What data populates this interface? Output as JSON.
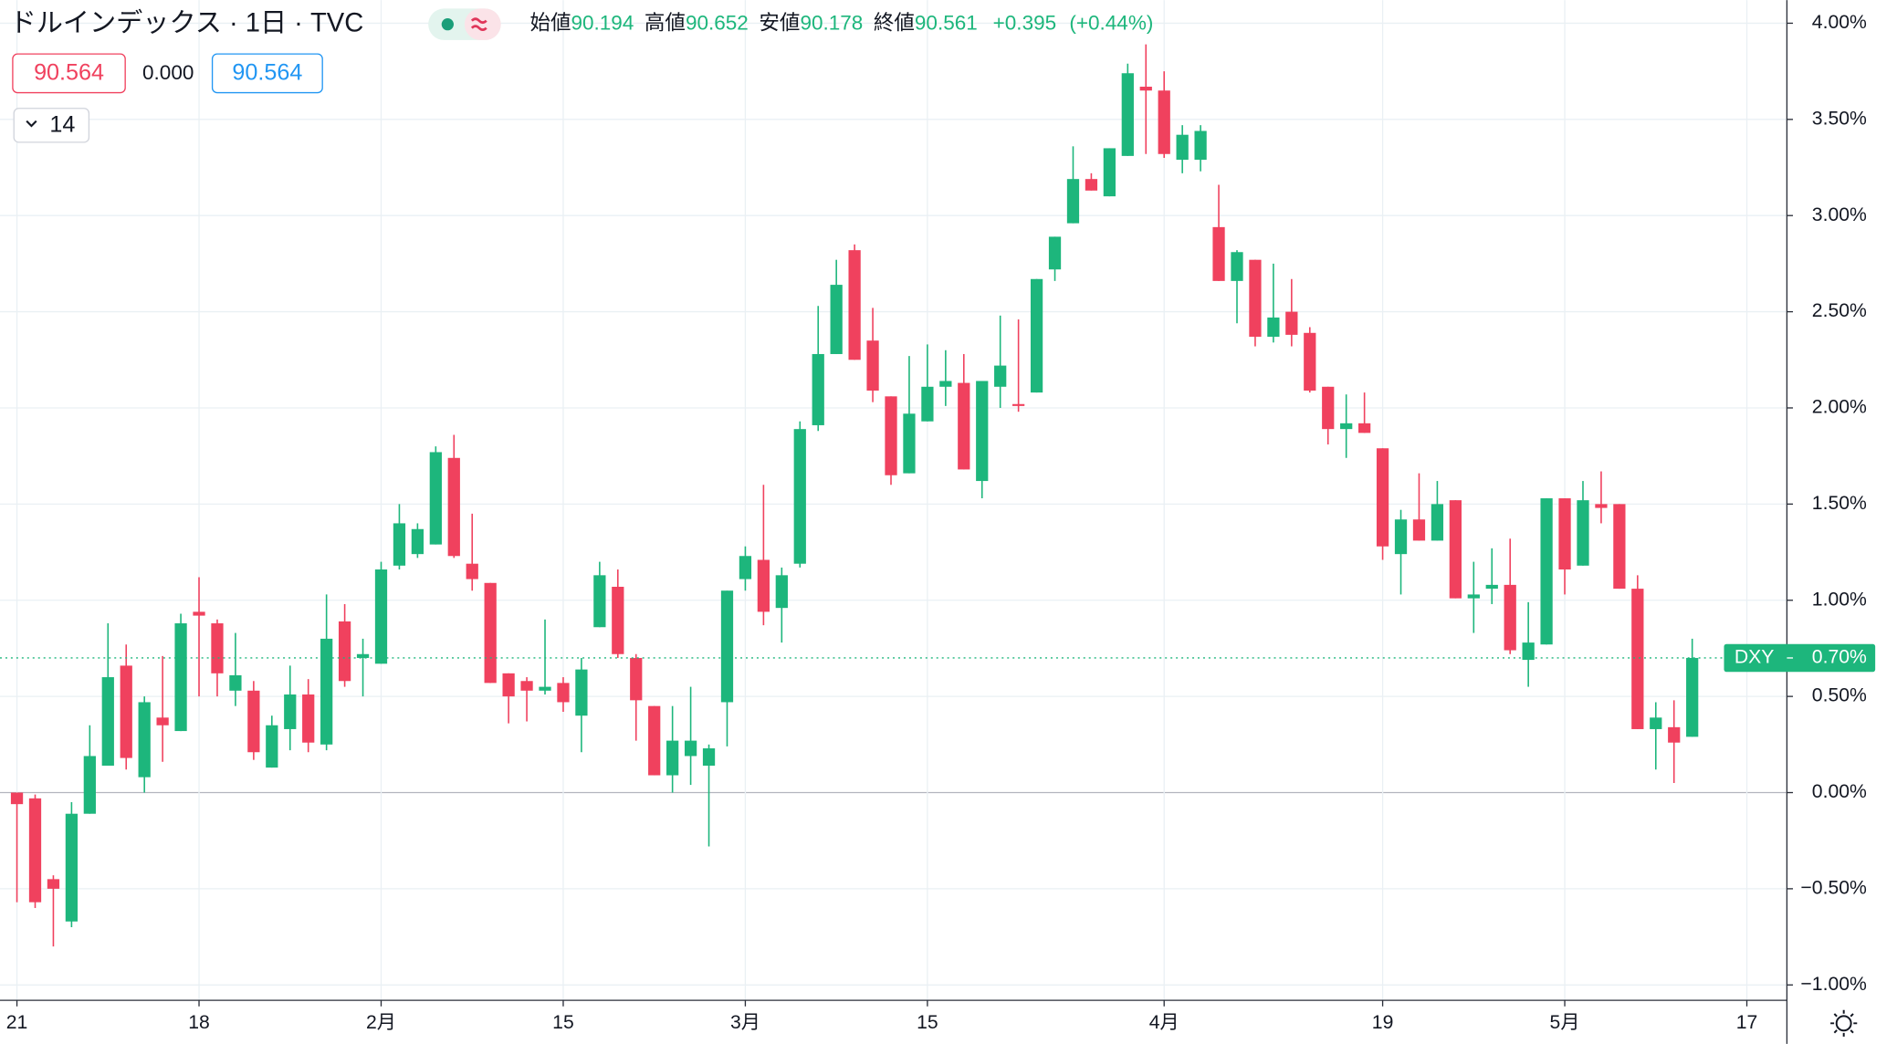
{
  "chart_data": {
    "type": "candlestick",
    "title": "ドルインデックス · 1日 · TVC",
    "legend": {
      "open_label": "始値",
      "open": 90.194,
      "high_label": "高値",
      "high": 90.652,
      "low_label": "安値",
      "low": 90.178,
      "close_label": "終値",
      "close": 90.561,
      "change": {
        "value": 0.395,
        "label": "+0.395"
      },
      "change_pct": {
        "value": 0.44,
        "label": "(+0.44%)"
      }
    },
    "quote": {
      "sell": 90.564,
      "spread": {
        "value": 0,
        "label": "0.000"
      },
      "buy": 90.564
    },
    "indicator_count": 14,
    "up_color": "#1db67c",
    "down_color": "#f0415e",
    "open": [
      0.0,
      -0.03,
      -0.45,
      -0.67,
      -0.11,
      0.14,
      0.66,
      0.08,
      0.39,
      0.32,
      0.94,
      0.88,
      0.53,
      0.53,
      0.13,
      0.33,
      0.51,
      0.25,
      0.89,
      0.7,
      0.67,
      1.18,
      1.24,
      1.29,
      1.74,
      1.19,
      1.09,
      0.62,
      0.58,
      0.53,
      0.57,
      0.4,
      0.86,
      1.07,
      0.7,
      0.45,
      0.09,
      0.19,
      0.14,
      0.47,
      1.11,
      1.21,
      0.96,
      1.19,
      1.91,
      2.28,
      2.82,
      2.35,
      2.06,
      1.66,
      1.93,
      2.11,
      2.13,
      1.62,
      2.11,
      2.02,
      2.08,
      2.72,
      2.96,
      3.19,
      3.1,
      3.31,
      3.67,
      3.65,
      3.29,
      3.29,
      2.94,
      2.66,
      2.77,
      2.37,
      2.5,
      2.39,
      2.11,
      1.89,
      1.92,
      1.79,
      1.24,
      1.42,
      1.31,
      1.52,
      1.01,
      1.06,
      1.08,
      0.69,
      0.77,
      1.53,
      1.18,
      1.5,
      1.5,
      1.06,
      0.33,
      0.34,
      0.29
    ],
    "high": [
      0.0,
      -0.01,
      -0.43,
      -0.05,
      0.35,
      0.88,
      0.77,
      0.5,
      0.71,
      0.93,
      1.12,
      0.9,
      0.83,
      0.58,
      0.4,
      0.66,
      0.59,
      1.03,
      0.98,
      0.8,
      1.2,
      1.5,
      1.4,
      1.8,
      1.86,
      1.45,
      1.09,
      0.62,
      0.6,
      0.9,
      0.6,
      0.7,
      1.2,
      1.16,
      0.72,
      0.45,
      0.45,
      0.55,
      0.25,
      1.05,
      1.28,
      1.6,
      1.17,
      1.93,
      2.53,
      2.77,
      2.85,
      2.52,
      2.06,
      2.27,
      2.33,
      2.3,
      2.28,
      2.14,
      2.48,
      2.46,
      2.67,
      2.89,
      3.36,
      3.22,
      3.35,
      3.79,
      3.89,
      3.75,
      3.47,
      3.47,
      3.16,
      2.82,
      2.77,
      2.75,
      2.67,
      2.42,
      2.11,
      2.07,
      2.08,
      1.79,
      1.47,
      1.66,
      1.62,
      1.52,
      1.2,
      1.27,
      1.32,
      0.99,
      1.53,
      1.53,
      1.62,
      1.67,
      1.5,
      1.13,
      0.47,
      0.48,
      0.8
    ],
    "low": [
      -0.57,
      -0.6,
      -0.8,
      -0.7,
      -0.11,
      0.14,
      0.12,
      0.0,
      0.16,
      0.32,
      0.5,
      0.5,
      0.45,
      0.17,
      0.13,
      0.22,
      0.21,
      0.22,
      0.55,
      0.5,
      0.67,
      1.16,
      1.22,
      1.29,
      1.22,
      1.05,
      0.57,
      0.36,
      0.37,
      0.51,
      0.42,
      0.21,
      0.86,
      0.7,
      0.27,
      0.09,
      0.0,
      0.04,
      -0.28,
      0.24,
      1.05,
      0.87,
      0.78,
      1.17,
      1.88,
      2.28,
      2.25,
      2.03,
      1.6,
      1.66,
      1.93,
      2.01,
      1.68,
      1.53,
      2.0,
      1.98,
      2.08,
      2.66,
      2.96,
      3.13,
      3.1,
      3.31,
      3.32,
      3.3,
      3.22,
      3.23,
      2.66,
      2.44,
      2.32,
      2.34,
      2.32,
      2.08,
      1.81,
      1.74,
      1.87,
      1.21,
      1.03,
      1.31,
      1.31,
      1.01,
      0.83,
      0.98,
      0.72,
      0.55,
      0.77,
      1.03,
      1.18,
      1.4,
      1.06,
      0.33,
      0.12,
      0.05,
      0.29
    ],
    "close": [
      -0.06,
      -0.57,
      -0.5,
      -0.11,
      0.19,
      0.6,
      0.18,
      0.47,
      0.35,
      0.88,
      0.92,
      0.62,
      0.61,
      0.21,
      0.35,
      0.51,
      0.26,
      0.8,
      0.58,
      0.72,
      1.16,
      1.4,
      1.37,
      1.77,
      1.23,
      1.11,
      0.57,
      0.5,
      0.53,
      0.55,
      0.47,
      0.64,
      1.13,
      0.72,
      0.48,
      0.09,
      0.27,
      0.27,
      0.23,
      1.05,
      1.23,
      0.94,
      1.13,
      1.89,
      2.28,
      2.64,
      2.25,
      2.09,
      1.65,
      1.97,
      2.11,
      2.14,
      1.68,
      2.14,
      2.22,
      2.01,
      2.67,
      2.89,
      3.19,
      3.13,
      3.35,
      3.74,
      3.65,
      3.32,
      3.42,
      3.44,
      2.66,
      2.81,
      2.37,
      2.47,
      2.38,
      2.09,
      1.89,
      1.92,
      1.87,
      1.28,
      1.42,
      1.31,
      1.5,
      1.01,
      1.03,
      1.08,
      0.74,
      0.78,
      1.53,
      1.16,
      1.52,
      1.48,
      1.06,
      0.33,
      0.39,
      0.26,
      0.7
    ],
    "xlim": [
      -0.93,
      97.2
    ],
    "xticks": [
      {
        "value": 0,
        "label": "21"
      },
      {
        "value": 10,
        "label": "18"
      },
      {
        "value": 20,
        "label": "2月"
      },
      {
        "value": 30,
        "label": "15"
      },
      {
        "value": 40,
        "label": "3月"
      },
      {
        "value": 50,
        "label": "15"
      },
      {
        "value": 63,
        "label": "4月"
      },
      {
        "value": 75,
        "label": "19"
      },
      {
        "value": 85,
        "label": "5月"
      },
      {
        "value": 95,
        "label": "17"
      }
    ],
    "ylim": [
      -1.08,
      4.12
    ],
    "yticks": [
      {
        "value": 4,
        "label": "4.00%"
      },
      {
        "value": 3.5,
        "label": "3.50%"
      },
      {
        "value": 3,
        "label": "3.00%"
      },
      {
        "value": 2.5,
        "label": "2.50%"
      },
      {
        "value": 2,
        "label": "2.00%"
      },
      {
        "value": 1.5,
        "label": "1.50%"
      },
      {
        "value": 1,
        "label": "1.00%"
      },
      {
        "value": 0.5,
        "label": "0.50%"
      },
      {
        "value": 0,
        "label": "0.00%"
      },
      {
        "value": -0.5,
        "label": "−0.50%"
      },
      {
        "value": -1,
        "label": "−1.00%"
      }
    ],
    "grid": true,
    "last_price": {
      "symbol": "DXY",
      "value": 0.7,
      "label": "0.70%"
    }
  }
}
